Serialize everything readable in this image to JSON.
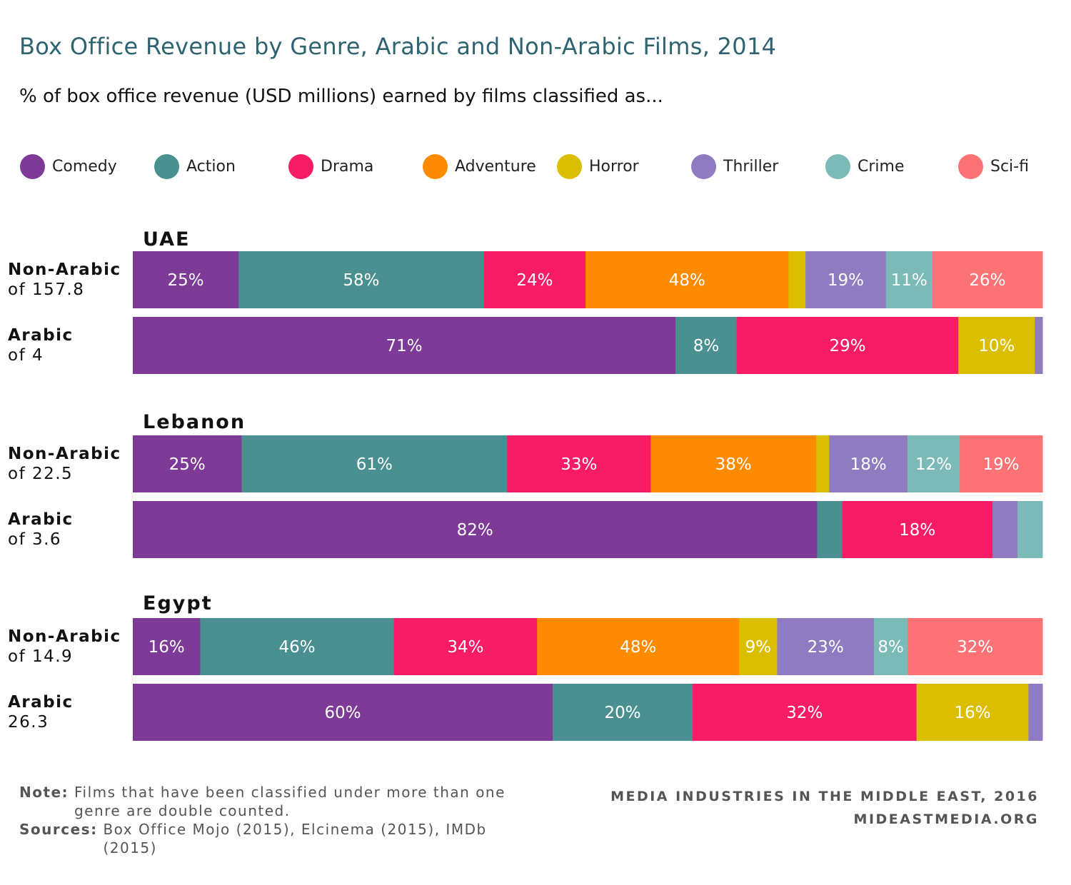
{
  "title": "Box Office Revenue by Genre, Arabic and Non-Arabic Films, 2014",
  "subtitle": "% of box office revenue (USD millions) earned by films classified as...",
  "legend": [
    {
      "name": "Comedy",
      "color": "#7d3a96"
    },
    {
      "name": "Action",
      "color": "#4a9090"
    },
    {
      "name": "Drama",
      "color": "#f81c67"
    },
    {
      "name": "Adventure",
      "color": "#fe8a00"
    },
    {
      "name": "Horror",
      "color": "#dcbe00"
    },
    {
      "name": "Thriller",
      "color": "#8f7bbf"
    },
    {
      "name": "Crime",
      "color": "#7bbab7"
    },
    {
      "name": "Sci-fi",
      "color": "#fd7275"
    }
  ],
  "chart_data": {
    "type": "bar",
    "orientation": "horizontal",
    "stacked": true,
    "legend_position": "top",
    "groups": [
      {
        "name": "UAE",
        "rows": [
          {
            "label": "Non-Arabic",
            "sub": "of 157.8",
            "values": [
              25,
              58,
              24,
              48,
              4,
              19,
              11,
              26
            ],
            "labels": [
              "25%",
              "58%",
              "24%",
              "48%",
              "",
              "19%",
              "11%",
              "26%"
            ]
          },
          {
            "label": "Arabic",
            "sub": "of 4",
            "values": [
              71,
              8,
              29,
              0,
              10,
              1,
              0,
              0
            ],
            "labels": [
              "71%",
              "8%",
              "29%",
              "",
              "10%",
              "",
              "",
              ""
            ]
          }
        ]
      },
      {
        "name": "Lebanon",
        "rows": [
          {
            "label": "Non-Arabic",
            "sub": "of 22.5",
            "values": [
              25,
              61,
              33,
              38,
              3,
              18,
              12,
              19
            ],
            "labels": [
              "25%",
              "61%",
              "33%",
              "38%",
              "",
              "18%",
              "12%",
              "19%"
            ]
          },
          {
            "label": "Arabic",
            "sub": "of 3.6",
            "values": [
              82,
              3,
              18,
              0,
              0,
              3,
              3,
              0
            ],
            "labels": [
              "82%",
              "",
              "18%",
              "",
              "",
              "",
              "",
              ""
            ]
          }
        ]
      },
      {
        "name": "Egypt",
        "rows": [
          {
            "label": "Non-Arabic",
            "sub": "of 14.9",
            "values": [
              16,
              46,
              34,
              48,
              9,
              23,
              8,
              32
            ],
            "labels": [
              "16%",
              "46%",
              "34%",
              "48%",
              "9%",
              "23%",
              "8%",
              "32%"
            ]
          },
          {
            "label": "Arabic",
            "sub": "26.3",
            "values": [
              60,
              20,
              32,
              0,
              16,
              2,
              0,
              0
            ],
            "labels": [
              "60%",
              "20%",
              "32%",
              "",
              "16%",
              "",
              "",
              ""
            ]
          }
        ]
      }
    ]
  },
  "footer": {
    "note_label": "Note:",
    "note_text": "Films that have been classified under more than one genre are double counted.",
    "sources_label": "Sources:",
    "sources_text": "Box Office Mojo (2015), Elcinema (2015), IMDb (2015)",
    "credit_line1": "MEDIA INDUSTRIES IN THE MIDDLE EAST, 2016",
    "credit_line2": "MIDEASTMEDIA.ORG"
  }
}
